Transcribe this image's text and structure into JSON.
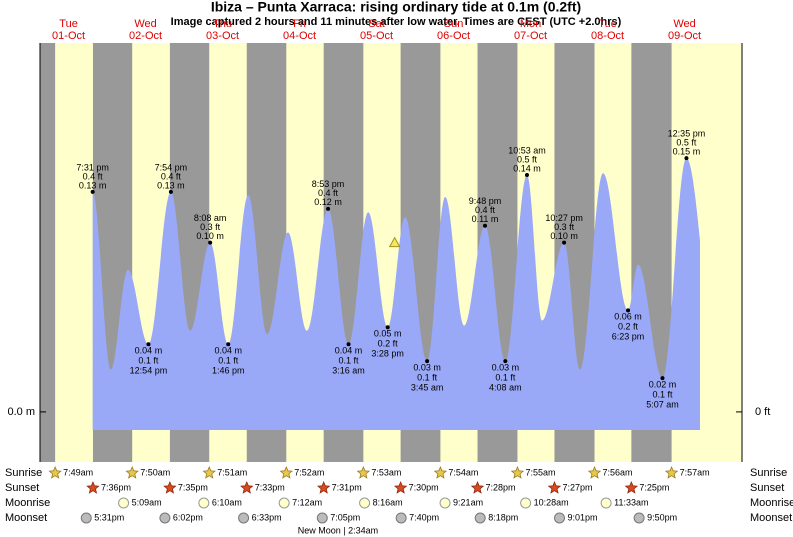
{
  "chart_data": {
    "type": "tide",
    "title": "Ibiza – Punta Xarraca: rising  ordinary tide at 0.1m (0.2ft)",
    "subtitle": "Image captured 2 hours and 11 minutes after low water. Times are CEST (UTC +2.0hrs)",
    "days": [
      {
        "weekday": "Tue",
        "date": "01-Oct"
      },
      {
        "weekday": "Wed",
        "date": "02-Oct"
      },
      {
        "weekday": "Thu",
        "date": "03-Oct"
      },
      {
        "weekday": "Fri",
        "date": "04-Oct"
      },
      {
        "weekday": "Sat",
        "date": "05-Oct"
      },
      {
        "weekday": "Sun",
        "date": "06-Oct"
      },
      {
        "weekday": "Mon",
        "date": "07-Oct"
      },
      {
        "weekday": "Tue",
        "date": "08-Oct"
      },
      {
        "weekday": "Wed",
        "date": "09-Oct"
      }
    ],
    "xlim": [
      3.1,
      221.9
    ],
    "ylim": [
      -0.0296,
      0.218
    ],
    "y2lim": [
      -0.0971,
      0.7152
    ],
    "yticks": [
      {
        "value": 0,
        "label": "0.0 m"
      }
    ],
    "y2ticks": [
      {
        "value": 0,
        "label": "0 ft"
      }
    ],
    "day_color": "#ffffcc",
    "night_color": "#999999",
    "curve": {
      "color": "#9aa8f8",
      "hours": [
        19.52,
        25.2,
        30.5,
        36.9,
        43.9,
        49.9,
        56.13,
        61.77,
        68.0,
        73.9,
        80.4,
        86.3,
        92.88,
        99.27,
        105.4,
        111.47,
        116.9,
        123.75,
        129.4,
        135.3,
        141.8,
        148.13,
        154.88,
        159.6,
        166.45,
        171.4,
        178.6,
        186.38,
        189.5,
        197.12,
        204.58,
        214
      ],
      "values": [
        0.13,
        0.025,
        0.084,
        0.04,
        0.13,
        0.048,
        0.1,
        0.04,
        0.128,
        0.046,
        0.106,
        0.048,
        0.12,
        0.04,
        0.118,
        0.05,
        0.115,
        0.03,
        0.127,
        0.051,
        0.11,
        0.03,
        0.14,
        0.054,
        0.1,
        0.025,
        0.141,
        0.06,
        0.087,
        0.02,
        0.15,
        0.035
      ]
    },
    "extremes": {
      "dates": [
        "01-Oct",
        "02-Oct",
        "02-Oct",
        "03-Oct",
        "03-Oct",
        "04-Oct",
        "05-Oct",
        "05-Oct",
        "06-Oct",
        "06-Oct",
        "07-Oct",
        "07-Oct",
        "07-Oct",
        "08-Oct",
        "09-Oct",
        "09-Oct"
      ],
      "times": [
        "7:31 pm",
        "12:54 pm",
        "7:54 pm",
        "8:08 am",
        "1:46 pm",
        "8:53 pm",
        "3:16 am",
        "3:28 pm",
        "3:45 am",
        "9:48 pm",
        "4:08 am",
        "10:53 am",
        "10:27 pm",
        "6:23 pm",
        "5:07 am",
        "12:35 pm"
      ],
      "values": [
        0.13,
        0.04,
        0.13,
        0.1,
        0.04,
        0.12,
        0.04,
        0.05,
        0.03,
        0.11,
        0.03,
        0.14,
        0.1,
        0.06,
        0.02,
        0.15
      ],
      "value_labels": [
        "0.13 m",
        "0.04 m",
        "0.13 m",
        "0.10 m",
        "0.04 m",
        "0.12 m",
        "0.04 m",
        "0.05 m",
        "0.03 m",
        "0.11 m",
        "0.03 m",
        "0.14 m",
        "0.10 m",
        "0.06 m",
        "0.02 m",
        "0.15 m"
      ],
      "ft_labels": [
        "0.4 ft",
        "0.1 ft",
        "0.4 ft",
        "0.3 ft",
        "0.1 ft",
        "0.4 ft",
        "0.1 ft",
        "0.2 ft",
        "0.1 ft",
        "0.4 ft",
        "0.1 ft",
        "0.5 ft",
        "0.3 ft",
        "0.2 ft",
        "0.1 ft",
        "0.5 ft"
      ]
    },
    "now": {
      "hours": 113.65,
      "value": 0.1
    },
    "sun": {
      "sunrise_label": "Sunrise",
      "sunset_label": "Sunset",
      "sunrise": [
        "7:49am",
        "7:50am",
        "7:51am",
        "7:52am",
        "7:53am",
        "7:54am",
        "7:55am",
        "7:56am",
        "7:57am"
      ],
      "sunset": [
        "7:36pm",
        "7:35pm",
        "7:33pm",
        "7:31pm",
        "7:30pm",
        "7:28pm",
        "7:27pm",
        "7:25pm"
      ]
    },
    "moon": {
      "moonrise_label": "Moonrise",
      "moonset_label": "Moonset",
      "moonrise_dates": [
        "02-Oct",
        "03-Oct",
        "04-Oct",
        "05-Oct",
        "06-Oct",
        "07-Oct",
        "08-Oct"
      ],
      "moonrise": [
        "5:09am",
        "6:10am",
        "7:12am",
        "8:16am",
        "9:21am",
        "10:28am",
        "11:33am"
      ],
      "moonset_dates": [
        "01-Oct",
        "02-Oct",
        "03-Oct",
        "04-Oct",
        "05-Oct",
        "06-Oct",
        "07-Oct",
        "08-Oct"
      ],
      "moonset": [
        "5:31pm",
        "6:02pm",
        "6:33pm",
        "7:05pm",
        "7:40pm",
        "8:18pm",
        "9:01pm",
        "9:50pm"
      ],
      "phase": "New Moon | 2:34am"
    }
  }
}
